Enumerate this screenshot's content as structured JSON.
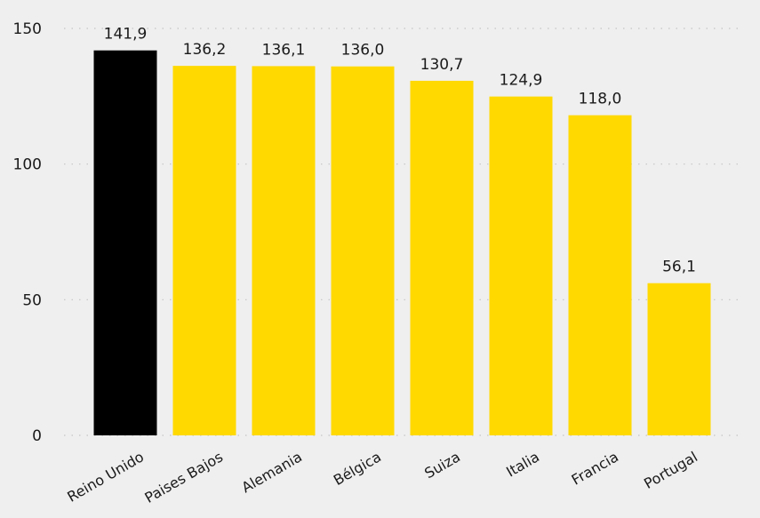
{
  "chart_data": {
    "type": "bar",
    "categories": [
      "Reino Unido",
      "Paises Bajos",
      "Alemania",
      "Bélgica",
      "Suiza",
      "Italia",
      "Francia",
      "Portugal"
    ],
    "values": [
      141.9,
      136.2,
      136.1,
      136.0,
      130.7,
      124.9,
      118.0,
      56.1
    ],
    "value_labels": [
      "141,9",
      "136,2",
      "136,1",
      "136,0",
      "130,7",
      "124,9",
      "118,0",
      "56,1"
    ],
    "yticks": [
      0,
      50,
      100,
      150
    ],
    "ylim": [
      0,
      150
    ],
    "grid": true,
    "highlight_index": 0,
    "colors": {
      "highlight": "#000000",
      "bar": "#ffd900",
      "background": "#efefef"
    }
  }
}
